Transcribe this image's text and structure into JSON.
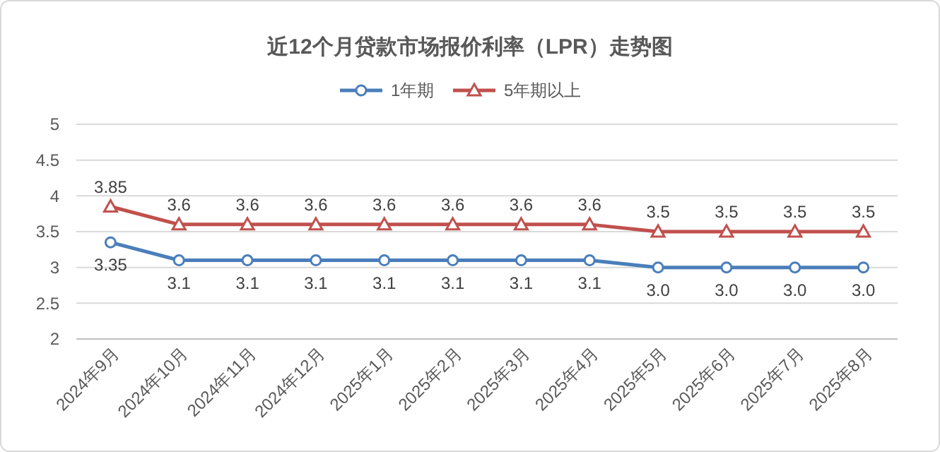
{
  "chart_data": {
    "type": "line",
    "title": "近12个月贷款市场报价利率（LPR）走势图",
    "categories": [
      "2024年9月",
      "2024年10月",
      "2024年11月",
      "2024年12月",
      "2025年1月",
      "2025年2月",
      "2025年3月",
      "2025年4月",
      "2025年5月",
      "2025年6月",
      "2025年7月",
      "2025年8月"
    ],
    "series": [
      {
        "name": "1年期",
        "color": "#4a7ebb",
        "marker": "circle",
        "values": [
          3.35,
          3.1,
          3.1,
          3.1,
          3.1,
          3.1,
          3.1,
          3.1,
          3.0,
          3.0,
          3.0,
          3.0
        ],
        "value_labels": [
          "3.35",
          "3.1",
          "3.1",
          "3.1",
          "3.1",
          "3.1",
          "3.1",
          "3.1",
          "3.0",
          "3.0",
          "3.0",
          "3.0"
        ]
      },
      {
        "name": "5年期以上",
        "color": "#c0504d",
        "marker": "triangle",
        "values": [
          3.85,
          3.6,
          3.6,
          3.6,
          3.6,
          3.6,
          3.6,
          3.6,
          3.5,
          3.5,
          3.5,
          3.5
        ],
        "value_labels": [
          "3.85",
          "3.6",
          "3.6",
          "3.6",
          "3.6",
          "3.6",
          "3.6",
          "3.6",
          "3.5",
          "3.5",
          "3.5",
          "3.5"
        ]
      }
    ],
    "ylim": [
      2,
      5
    ],
    "yticks": [
      2,
      2.5,
      3,
      3.5,
      4,
      4.5,
      5
    ],
    "grid": "y",
    "legend": "top"
  }
}
